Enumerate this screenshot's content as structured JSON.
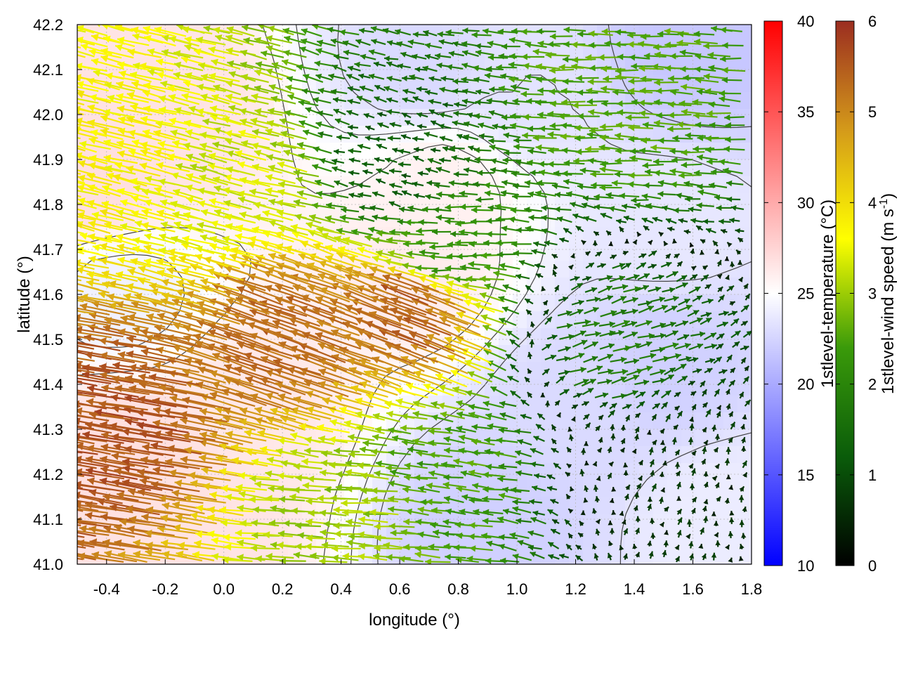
{
  "chart_data": {
    "type": "vector field over heatmap with contours",
    "xlabel": "longitude (°)",
    "ylabel": "latitude (°)",
    "xlim": [
      -0.5,
      1.8
    ],
    "ylim": [
      41.0,
      42.2
    ],
    "x_ticks": [
      "-0.4",
      "-0.2",
      "0.0",
      "0.2",
      "0.4",
      "0.6",
      "0.8",
      "1.0",
      "1.2",
      "1.4",
      "1.6",
      "1.8"
    ],
    "x_tick_values": [
      -0.4,
      -0.2,
      0.0,
      0.2,
      0.4,
      0.6,
      0.8,
      1.0,
      1.2,
      1.4,
      1.6,
      1.8
    ],
    "y_ticks": [
      "41.0",
      "41.1",
      "41.2",
      "41.3",
      "41.4",
      "41.5",
      "41.6",
      "41.7",
      "41.8",
      "41.9",
      "42.0",
      "42.1",
      "42.2"
    ],
    "y_tick_values": [
      41.0,
      41.1,
      41.2,
      41.3,
      41.4,
      41.5,
      41.6,
      41.7,
      41.8,
      41.9,
      42.0,
      42.1,
      42.2
    ],
    "grid": true,
    "colorbars": [
      {
        "label": "1stlevel-temperature (°C)",
        "range": [
          10,
          40
        ],
        "ticks": [
          "10",
          "15",
          "20",
          "25",
          "30",
          "35",
          "40"
        ],
        "tick_values": [
          10,
          15,
          20,
          25,
          30,
          35,
          40
        ],
        "colors": [
          "#0000ff",
          "#ffffff",
          "#ff0000"
        ]
      },
      {
        "label_main": "1stlevel-wind speed (m s",
        "label_sup": "-1",
        "label_end": ")",
        "range": [
          0,
          6
        ],
        "ticks": [
          "0",
          "1",
          "2",
          "3",
          "4",
          "5",
          "6"
        ],
        "tick_values": [
          0,
          1,
          2,
          3,
          4,
          5,
          6
        ],
        "colors": [
          "#000000",
          "#0a5c0a",
          "#3a9a0a",
          "#ffff00",
          "#d49a1a",
          "#9b2d20"
        ]
      }
    ],
    "temperature_regions": [
      {
        "lon": -0.45,
        "lat": 41.85,
        "t": 28.5
      },
      {
        "lon": -0.2,
        "lat": 42.0,
        "t": 28
      },
      {
        "lon": -0.3,
        "lat": 41.25,
        "t": 28.5
      },
      {
        "lon": -0.1,
        "lat": 41.1,
        "t": 28
      },
      {
        "lon": 0.1,
        "lat": 41.35,
        "t": 27.5
      },
      {
        "lon": 0.65,
        "lat": 41.65,
        "t": 27
      },
      {
        "lon": 0.75,
        "lat": 41.85,
        "t": 26.5
      },
      {
        "lon": -0.35,
        "lat": 41.6,
        "t": 23.5
      },
      {
        "lon": 0.9,
        "lat": 41.1,
        "t": 20
      },
      {
        "lon": 1.2,
        "lat": 41.35,
        "t": 21
      },
      {
        "lon": 1.5,
        "lat": 41.45,
        "t": 20
      },
      {
        "lon": 1.6,
        "lat": 42.15,
        "t": 19
      },
      {
        "lon": 1.0,
        "lat": 42.05,
        "t": 22
      },
      {
        "lon": 0.7,
        "lat": 42.1,
        "t": 21
      },
      {
        "lon": 1.7,
        "lat": 41.1,
        "t": 23
      },
      {
        "lon": 1.5,
        "lat": 41.75,
        "t": 22.5
      }
    ],
    "wind_regions": [
      {
        "lon": -0.3,
        "lat": 41.9,
        "u": -3.6,
        "v": 0.9
      },
      {
        "lon": 0.1,
        "lat": 41.85,
        "u": -3.2,
        "v": 0.8
      },
      {
        "lon": -0.3,
        "lat": 41.3,
        "u": -5.5,
        "v": 0.9
      },
      {
        "lon": 0.3,
        "lat": 41.5,
        "u": -5.0,
        "v": 1.8
      },
      {
        "lon": 0.7,
        "lat": 41.55,
        "u": -5.0,
        "v": 2.0
      },
      {
        "lon": 0.8,
        "lat": 41.7,
        "u": -2.2,
        "v": 0.0
      },
      {
        "lon": 0.6,
        "lat": 41.9,
        "u": -1.2,
        "v": 0.3
      },
      {
        "lon": 1.4,
        "lat": 42.0,
        "u": -2.5,
        "v": 0.1
      },
      {
        "lon": 1.3,
        "lat": 41.5,
        "u": 1.8,
        "v": 0.5
      },
      {
        "lon": 1.45,
        "lat": 41.2,
        "u": 0.2,
        "v": 0.6
      },
      {
        "lon": 0.8,
        "lat": 41.2,
        "u": -2.4,
        "v": 0.3
      },
      {
        "lon": 0.45,
        "lat": 41.1,
        "u": -3.0,
        "v": 0.2
      }
    ],
    "contour_temperatures": [
      20,
      22,
      24,
      26
    ]
  }
}
